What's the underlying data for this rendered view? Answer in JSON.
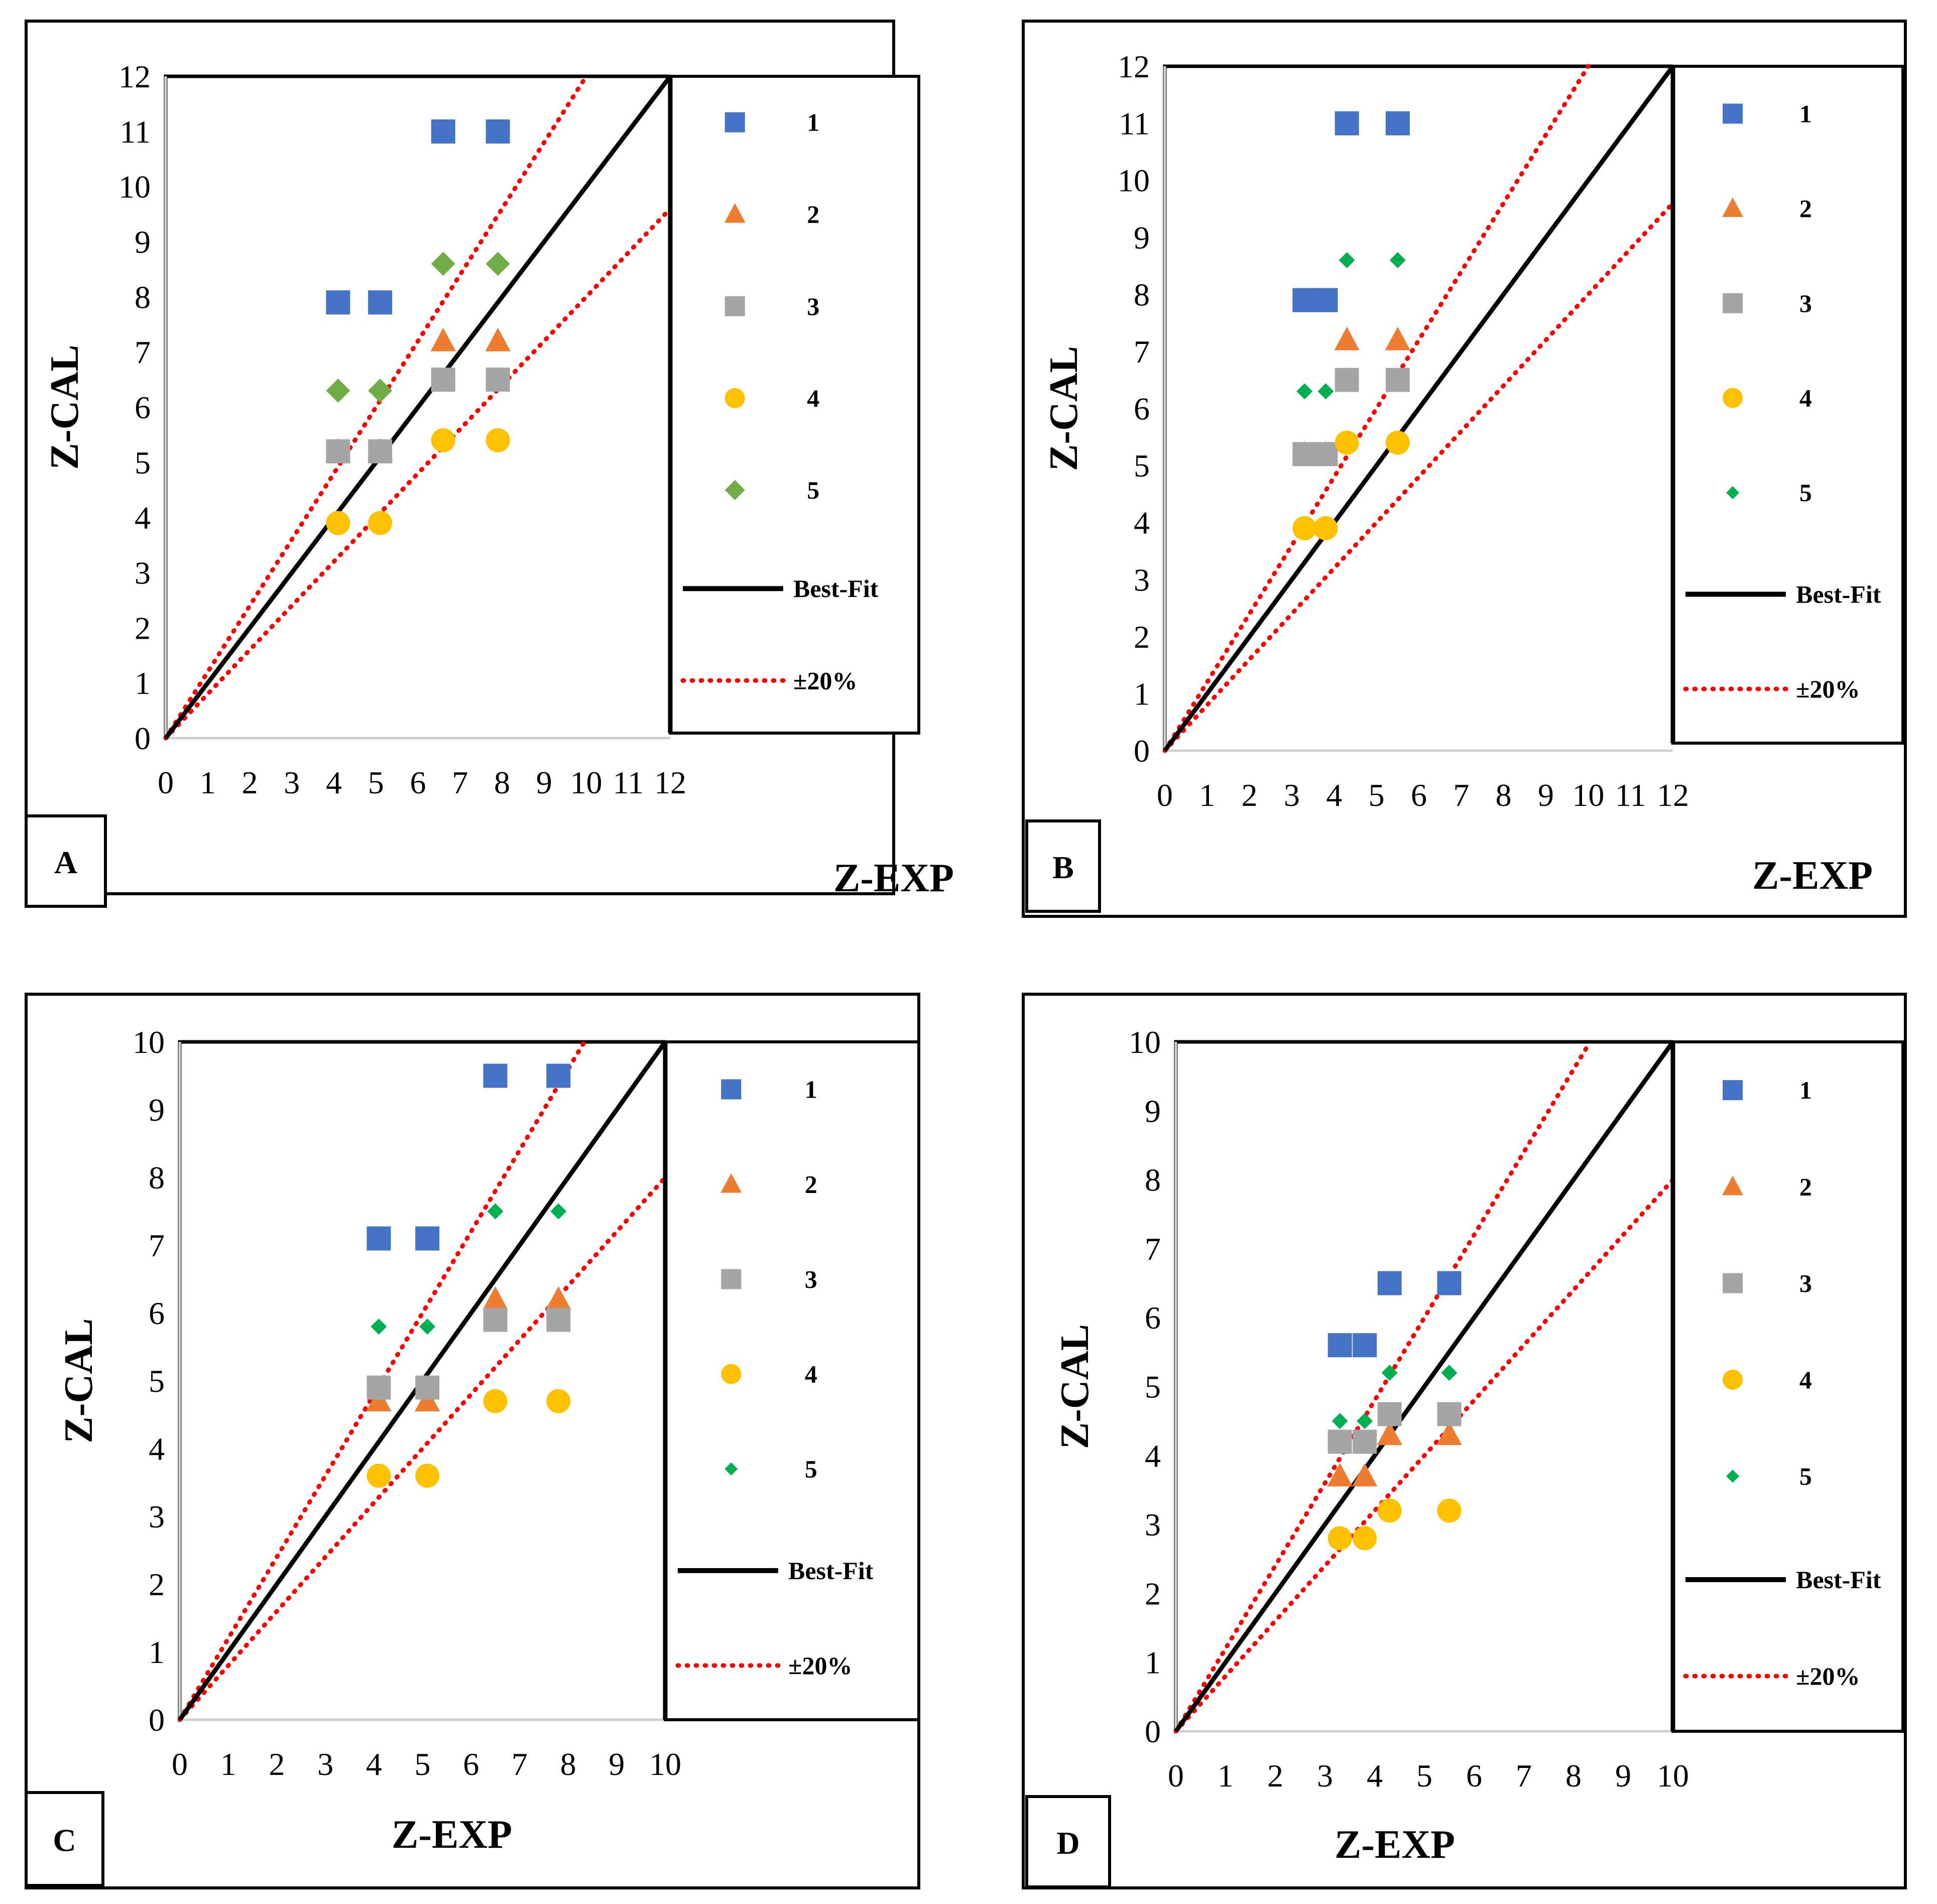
{
  "figure": {
    "panel_count": 4
  },
  "legend_labels": [
    "1",
    "2",
    "3",
    "4",
    "5",
    "Best-Fit",
    "±20%"
  ],
  "colors": {
    "s1": "#4472C4",
    "s2": "#ED7D31",
    "s3": "#A5A5A5",
    "s4": "#FFC000",
    "s5_A": "#70AD47",
    "s5_other": "#00B050",
    "best_fit": "#000000",
    "band": "#FF0000"
  },
  "chart_data": [
    {
      "type": "scatter",
      "panel_label": "A",
      "xlabel": "Z-EXP",
      "ylabel": "Z-CAL",
      "xlim": [
        0,
        12
      ],
      "ylim": [
        0,
        12
      ],
      "xticks": [
        "0",
        "1",
        "2",
        "3",
        "4",
        "5",
        "6",
        "7",
        "8",
        "9",
        "10",
        "11",
        "12"
      ],
      "yticks": [
        "0",
        "1",
        "2",
        "3",
        "4",
        "5",
        "6",
        "7",
        "8",
        "9",
        "10",
        "11",
        "12"
      ],
      "series": [
        {
          "name": "1",
          "marker": "square",
          "color": "#4472C4",
          "x": [
            4.1,
            5.1,
            6.6,
            7.9
          ],
          "y": [
            7.9,
            7.9,
            11.0,
            11.0
          ]
        },
        {
          "name": "2",
          "marker": "triangle",
          "color": "#ED7D31",
          "x": [
            4.1,
            5.1,
            6.6,
            7.9
          ],
          "y": [
            5.2,
            5.2,
            7.2,
            7.2
          ]
        },
        {
          "name": "3",
          "marker": "square",
          "color": "#A5A5A5",
          "x": [
            4.1,
            5.1,
            6.6,
            7.9
          ],
          "y": [
            5.2,
            5.2,
            6.5,
            6.5
          ]
        },
        {
          "name": "4",
          "marker": "circle",
          "color": "#FFC000",
          "x": [
            4.1,
            5.1,
            6.6,
            7.9
          ],
          "y": [
            3.9,
            3.9,
            5.4,
            5.4
          ]
        },
        {
          "name": "5",
          "marker": "diamond",
          "color": "#70AD47",
          "x": [
            4.1,
            5.1,
            6.6,
            7.9
          ],
          "y": [
            6.3,
            6.3,
            8.6,
            8.6
          ]
        }
      ],
      "lines": [
        {
          "name": "Best-Fit",
          "style": "solid",
          "slope": 1.0
        },
        {
          "name": "±20%",
          "style": "dotted",
          "slope_upper": 1.2,
          "slope_lower": 0.8
        }
      ]
    },
    {
      "type": "scatter",
      "panel_label": "B",
      "xlabel": "Z-EXP",
      "ylabel": "Z-CAL",
      "xlim": [
        0,
        12
      ],
      "ylim": [
        0,
        12
      ],
      "xticks": [
        "0",
        "1",
        "2",
        "3",
        "4",
        "5",
        "6",
        "7",
        "8",
        "9",
        "10",
        "11",
        "12"
      ],
      "yticks": [
        "0",
        "1",
        "2",
        "3",
        "4",
        "5",
        "6",
        "7",
        "8",
        "9",
        "10",
        "11",
        "12"
      ],
      "series": [
        {
          "name": "1",
          "marker": "square",
          "color": "#4472C4",
          "x": [
            3.3,
            3.8,
            4.3,
            5.5
          ],
          "y": [
            7.9,
            7.9,
            11.0,
            11.0
          ]
        },
        {
          "name": "2",
          "marker": "triangle",
          "color": "#ED7D31",
          "x": [
            3.3,
            3.8,
            4.3,
            5.5
          ],
          "y": [
            5.2,
            5.2,
            7.2,
            7.2
          ]
        },
        {
          "name": "3",
          "marker": "square",
          "color": "#A5A5A5",
          "x": [
            3.3,
            3.8,
            4.3,
            5.5
          ],
          "y": [
            5.2,
            5.2,
            6.5,
            6.5
          ]
        },
        {
          "name": "4",
          "marker": "circle",
          "color": "#FFC000",
          "x": [
            3.3,
            3.8,
            4.3,
            5.5
          ],
          "y": [
            3.9,
            3.9,
            5.4,
            5.4
          ]
        },
        {
          "name": "5",
          "marker": "diamond",
          "color": "#00B050",
          "x": [
            3.3,
            3.8,
            4.3,
            5.5
          ],
          "y": [
            6.3,
            6.3,
            8.6,
            8.6
          ]
        }
      ],
      "lines": [
        {
          "name": "Best-Fit",
          "style": "solid",
          "slope": 1.0
        },
        {
          "name": "±20%",
          "style": "dotted",
          "slope_upper": 1.2,
          "slope_lower": 0.8
        }
      ]
    },
    {
      "type": "scatter",
      "panel_label": "C",
      "xlabel": "Z-EXP",
      "ylabel": "Z-CAL",
      "xlim": [
        0,
        10
      ],
      "ylim": [
        0,
        10
      ],
      "xticks": [
        "0",
        "1",
        "2",
        "3",
        "4",
        "5",
        "6",
        "7",
        "8",
        "9",
        "10"
      ],
      "yticks": [
        "0",
        "1",
        "2",
        "3",
        "4",
        "5",
        "6",
        "7",
        "8",
        "9",
        "10"
      ],
      "series": [
        {
          "name": "1",
          "marker": "square",
          "color": "#4472C4",
          "x": [
            4.1,
            5.1,
            6.5,
            7.8
          ],
          "y": [
            7.1,
            7.1,
            9.5,
            9.5
          ]
        },
        {
          "name": "2",
          "marker": "triangle",
          "color": "#ED7D31",
          "x": [
            4.1,
            5.1,
            6.5,
            7.8
          ],
          "y": [
            4.7,
            4.7,
            6.2,
            6.2
          ]
        },
        {
          "name": "3",
          "marker": "square",
          "color": "#A5A5A5",
          "x": [
            4.1,
            5.1,
            6.5,
            7.8
          ],
          "y": [
            4.9,
            4.9,
            5.9,
            5.9
          ]
        },
        {
          "name": "4",
          "marker": "circle",
          "color": "#FFC000",
          "x": [
            4.1,
            5.1,
            6.5,
            7.8
          ],
          "y": [
            3.6,
            3.6,
            4.7,
            4.7
          ]
        },
        {
          "name": "5",
          "marker": "diamond",
          "color": "#00B050",
          "x": [
            4.1,
            5.1,
            6.5,
            7.8
          ],
          "y": [
            5.8,
            5.8,
            7.5,
            7.5
          ]
        }
      ],
      "lines": [
        {
          "name": "Best-Fit",
          "style": "solid",
          "slope": 1.0
        },
        {
          "name": "±20%",
          "style": "dotted",
          "slope_upper": 1.2,
          "slope_lower": 0.8
        }
      ]
    },
    {
      "type": "scatter",
      "panel_label": "D",
      "xlabel": "Z-EXP",
      "ylabel": "Z-CAL",
      "xlim": [
        0,
        10
      ],
      "ylim": [
        0,
        10
      ],
      "xticks": [
        "0",
        "1",
        "2",
        "3",
        "4",
        "5",
        "6",
        "7",
        "8",
        "9",
        "10"
      ],
      "yticks": [
        "0",
        "1",
        "2",
        "3",
        "4",
        "5",
        "6",
        "7",
        "8",
        "9",
        "10"
      ],
      "series": [
        {
          "name": "1",
          "marker": "square",
          "color": "#4472C4",
          "x": [
            3.3,
            3.8,
            4.3,
            5.5
          ],
          "y": [
            5.6,
            5.6,
            6.5,
            6.5
          ]
        },
        {
          "name": "2",
          "marker": "triangle",
          "color": "#ED7D31",
          "x": [
            3.3,
            3.8,
            4.3,
            5.5
          ],
          "y": [
            3.7,
            3.7,
            4.3,
            4.3
          ]
        },
        {
          "name": "3",
          "marker": "square",
          "color": "#A5A5A5",
          "x": [
            3.3,
            3.8,
            4.3,
            5.5
          ],
          "y": [
            4.2,
            4.2,
            4.6,
            4.6
          ]
        },
        {
          "name": "4",
          "marker": "circle",
          "color": "#FFC000",
          "x": [
            3.3,
            3.8,
            4.3,
            5.5
          ],
          "y": [
            2.8,
            2.8,
            3.2,
            3.2
          ]
        },
        {
          "name": "5",
          "marker": "diamond",
          "color": "#00B050",
          "x": [
            3.3,
            3.8,
            4.3,
            5.5
          ],
          "y": [
            4.5,
            4.5,
            5.2,
            5.2
          ]
        }
      ],
      "lines": [
        {
          "name": "Best-Fit",
          "style": "solid",
          "slope": 1.0
        },
        {
          "name": "±20%",
          "style": "dotted",
          "slope_upper": 1.2,
          "slope_lower": 0.8
        }
      ]
    }
  ]
}
